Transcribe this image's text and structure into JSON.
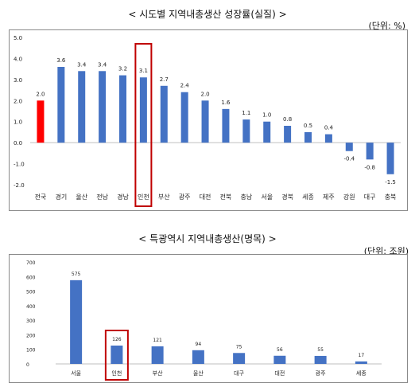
{
  "chart_data": [
    {
      "type": "bar",
      "title": "< 시도별 지역내총생산 성장률(실질) >",
      "unit_label": "(단위: %)",
      "categories": [
        "전국",
        "경기",
        "울산",
        "전남",
        "경남",
        "인천",
        "부산",
        "광주",
        "대전",
        "전북",
        "충남",
        "서울",
        "경북",
        "세종",
        "제주",
        "강원",
        "대구",
        "충북"
      ],
      "values": [
        2.0,
        3.6,
        3.4,
        3.4,
        3.2,
        3.1,
        2.7,
        2.4,
        2.0,
        1.6,
        1.1,
        1.0,
        0.8,
        0.5,
        0.4,
        -0.4,
        -0.8,
        -1.5
      ],
      "value_labels": [
        "2.0",
        "3.6",
        "3.4",
        "3.4",
        "3.2",
        "3.1",
        "2.7",
        "2.4",
        "2.0",
        "1.6",
        "1.1",
        "1.0",
        "0.8",
        "0.5",
        "0.4",
        "-0.4",
        "-0.8",
        "-1.5"
      ],
      "ylim": [
        -2.0,
        5.0
      ],
      "yticks": [
        "-2.0",
        "-1.0",
        "0.0",
        "1.0",
        "2.0",
        "3.0",
        "4.0",
        "5.0"
      ],
      "colors": {
        "bar": "#4472C4",
        "highlight_bar": "#FF0000",
        "box": "#C00000"
      },
      "red_bar_category": "전국",
      "boxed_category": "인천",
      "grid": false,
      "legend": "none"
    },
    {
      "type": "bar",
      "title": "< 특광역시 지역내총생산(명목) >",
      "unit_label": "(단위: 조원)",
      "categories": [
        "서울",
        "인천",
        "부산",
        "울산",
        "대구",
        "대전",
        "광주",
        "세종"
      ],
      "values": [
        575,
        126,
        121,
        94,
        75,
        56,
        55,
        17
      ],
      "value_labels": [
        "575",
        "126",
        "121",
        "94",
        "75",
        "56",
        "55",
        "17"
      ],
      "ylim": [
        0,
        700
      ],
      "yticks": [
        "0",
        "100",
        "200",
        "300",
        "400",
        "500",
        "600",
        "700"
      ],
      "colors": {
        "bar": "#4472C4",
        "box": "#C00000"
      },
      "boxed_category": "인천",
      "grid": false,
      "legend": "none"
    }
  ]
}
